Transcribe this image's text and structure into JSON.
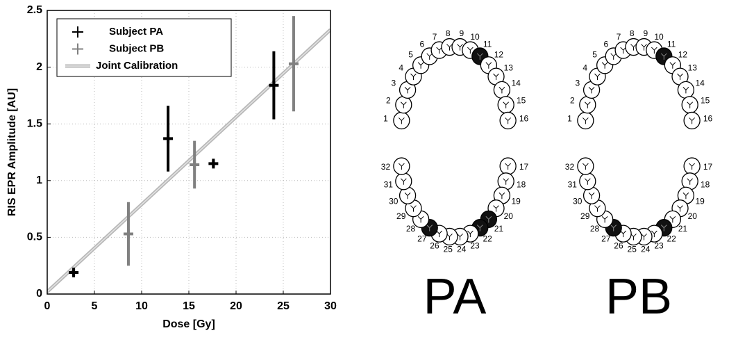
{
  "chart_data": {
    "type": "errorbar",
    "xlabel": "Dose [Gy]",
    "ylabel": "RIS EPR Amplitude [AU]",
    "xlim": [
      0,
      30
    ],
    "ylim": [
      0,
      2.5
    ],
    "xticks": [
      0,
      5,
      10,
      15,
      20,
      25,
      30
    ],
    "yticks": [
      0,
      0.5,
      1,
      1.5,
      2,
      2.5
    ],
    "grid": true,
    "legend": "upper left",
    "series": [
      {
        "name": "Subject PA",
        "color": "#000000",
        "x": [
          2.8,
          12.8,
          17.6,
          24
        ],
        "values": [
          0.19,
          1.37,
          1.15,
          1.84
        ],
        "errors": [
          0.03,
          0.29,
          0.03,
          0.3
        ]
      },
      {
        "name": "Subject PB",
        "color": "#808080",
        "x": [
          8.6,
          15.6,
          26.1
        ],
        "values": [
          0.53,
          1.14,
          2.03
        ],
        "errors": [
          0.28,
          0.21,
          0.42
        ]
      },
      {
        "name": "Joint Calibration",
        "type": "line",
        "color": "#b8b8b8",
        "x": [
          0,
          30
        ],
        "values": [
          0.02,
          2.33
        ]
      }
    ]
  },
  "diagrams": [
    {
      "label": "PA",
      "teeth": [
        1,
        2,
        3,
        4,
        5,
        6,
        7,
        8,
        9,
        10,
        11,
        12,
        13,
        14,
        15,
        16,
        17,
        18,
        19,
        20,
        21,
        22,
        23,
        24,
        25,
        26,
        27,
        28,
        29,
        30,
        31,
        32
      ],
      "dark_teeth": [
        11,
        21,
        22,
        27
      ]
    },
    {
      "label": "PB",
      "teeth": [
        1,
        2,
        3,
        4,
        5,
        6,
        7,
        8,
        9,
        10,
        11,
        12,
        13,
        14,
        15,
        16,
        17,
        18,
        19,
        20,
        21,
        22,
        23,
        24,
        25,
        26,
        27,
        28,
        29,
        30,
        31,
        32
      ],
      "dark_teeth": [
        11,
        22,
        27
      ]
    }
  ]
}
